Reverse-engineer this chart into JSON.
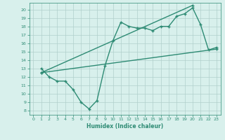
{
  "line1_x": [
    1,
    2,
    3,
    4,
    5,
    6,
    7,
    8,
    9,
    10,
    11,
    12,
    13,
    14,
    15,
    16,
    17,
    18,
    19,
    20,
    21,
    22,
    23
  ],
  "line1_y": [
    13.0,
    12.0,
    11.5,
    11.5,
    10.5,
    9.0,
    8.2,
    9.2,
    13.3,
    16.3,
    18.5,
    18.0,
    17.8,
    17.8,
    17.5,
    18.0,
    18.0,
    19.2,
    19.5,
    20.2,
    18.2,
    15.2,
    15.5
  ],
  "line2_x": [
    1,
    20
  ],
  "line2_y": [
    12.5,
    20.5
  ],
  "line3_x": [
    1,
    23
  ],
  "line3_y": [
    12.5,
    15.3
  ],
  "line_color": "#2e8b74",
  "bg_color": "#d8f0ec",
  "grid_color": "#b0d0cb",
  "xlim": [
    -0.5,
    23.5
  ],
  "ylim": [
    7.5,
    20.8
  ],
  "xticks": [
    0,
    1,
    2,
    3,
    4,
    5,
    6,
    7,
    8,
    9,
    10,
    11,
    12,
    13,
    14,
    15,
    16,
    17,
    18,
    19,
    20,
    21,
    22,
    23
  ],
  "yticks": [
    8,
    9,
    10,
    11,
    12,
    13,
    14,
    15,
    16,
    17,
    18,
    19,
    20
  ],
  "xlabel": "Humidex (Indice chaleur)",
  "marker": "+",
  "marker_size": 3,
  "line_width": 1.0
}
